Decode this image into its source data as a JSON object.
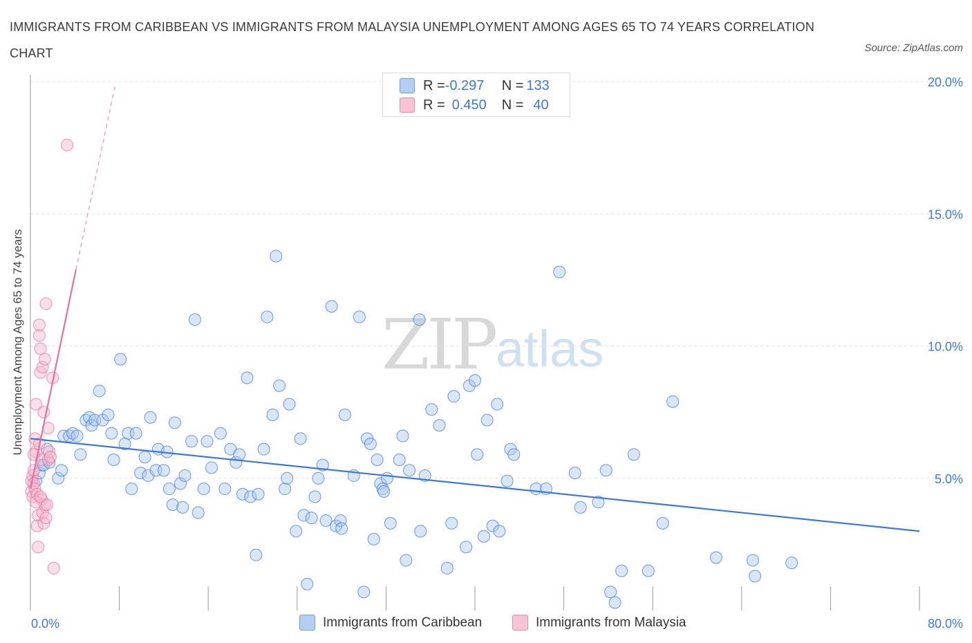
{
  "title": "IMMIGRANTS FROM CARIBBEAN VS IMMIGRANTS FROM MALAYSIA UNEMPLOYMENT AMONG AGES 65 TO 74 YEARS CORRELATION CHART",
  "source": "Source: ZipAtlas.com",
  "watermark": {
    "zip": "ZIP",
    "atlas": "atlas"
  },
  "colors": {
    "blue": "#3c78d8",
    "blue_fill": "#a9c8f0",
    "pink": "#e8709a",
    "pink_fill": "#f5b6cb",
    "grid": "#e2e2e2"
  },
  "legend": {
    "rows": [
      {
        "r_label": "R = ",
        "r_value": "-0.297",
        "n_label": "N = ",
        "n_value": "133"
      },
      {
        "r_label": "R = ",
        "r_value": "0.450",
        "n_label": "N = ",
        "n_value": "40"
      }
    ]
  },
  "bottom_legend": [
    "Immigrants from Caribbean",
    "Immigrants from Malaysia"
  ],
  "chart_data": {
    "type": "scatter",
    "title": "IMMIGRANTS FROM CARIBBEAN VS IMMIGRANTS FROM MALAYSIA UNEMPLOYMENT AMONG AGES 65 TO 74 YEARS CORRELATION CHART",
    "xlabel": "",
    "ylabel": "Unemployment Among Ages 65 to 74 years",
    "xlim": [
      0,
      80
    ],
    "ylim": [
      0,
      20
    ],
    "x_tick_labels": [
      "0.0%",
      "80.0%"
    ],
    "y_ticks": [
      5,
      10,
      15,
      20
    ],
    "y_tick_labels": [
      "5.0%",
      "10.0%",
      "15.0%",
      "20.0%"
    ],
    "series": [
      {
        "name": "Immigrants from Caribbean",
        "R": -0.297,
        "N": 133,
        "trend": {
          "x": [
            0,
            80
          ],
          "y": [
            6.5,
            3.0
          ]
        },
        "points": [
          [
            0.5,
            4.9
          ],
          [
            0.8,
            5.2
          ],
          [
            1.0,
            5.5
          ],
          [
            1.2,
            5.5
          ],
          [
            1.5,
            6.1
          ],
          [
            1.7,
            5.6
          ],
          [
            2.5,
            5.0
          ],
          [
            2.8,
            5.3
          ],
          [
            3.0,
            6.6
          ],
          [
            3.5,
            6.6
          ],
          [
            3.8,
            6.7
          ],
          [
            4.2,
            6.6
          ],
          [
            4.5,
            5.9
          ],
          [
            5.0,
            7.2
          ],
          [
            5.3,
            7.3
          ],
          [
            5.5,
            7.0
          ],
          [
            5.8,
            7.2
          ],
          [
            6.2,
            8.3
          ],
          [
            6.5,
            7.2
          ],
          [
            7.0,
            7.4
          ],
          [
            7.3,
            6.7
          ],
          [
            7.5,
            5.7
          ],
          [
            8.1,
            9.5
          ],
          [
            8.5,
            6.3
          ],
          [
            8.8,
            6.7
          ],
          [
            9.1,
            4.6
          ],
          [
            9.5,
            6.7
          ],
          [
            9.9,
            5.2
          ],
          [
            10.3,
            5.8
          ],
          [
            10.6,
            5.1
          ],
          [
            10.8,
            7.3
          ],
          [
            11.3,
            5.3
          ],
          [
            11.5,
            6.1
          ],
          [
            12.0,
            5.3
          ],
          [
            12.3,
            6.0
          ],
          [
            12.5,
            4.6
          ],
          [
            12.8,
            4.0
          ],
          [
            13.0,
            7.1
          ],
          [
            13.5,
            4.8
          ],
          [
            13.7,
            3.9
          ],
          [
            13.9,
            5.1
          ],
          [
            14.5,
            6.4
          ],
          [
            14.8,
            11.0
          ],
          [
            15.1,
            3.7
          ],
          [
            15.6,
            4.6
          ],
          [
            15.9,
            6.4
          ],
          [
            16.3,
            5.4
          ],
          [
            17.1,
            6.7
          ],
          [
            17.5,
            4.6
          ],
          [
            18.0,
            6.1
          ],
          [
            18.5,
            5.6
          ],
          [
            18.8,
            5.9
          ],
          [
            19.1,
            4.4
          ],
          [
            19.5,
            8.8
          ],
          [
            19.8,
            4.3
          ],
          [
            20.3,
            2.1
          ],
          [
            20.5,
            4.4
          ],
          [
            21.0,
            6.1
          ],
          [
            21.3,
            11.1
          ],
          [
            21.8,
            7.4
          ],
          [
            22.1,
            13.4
          ],
          [
            22.4,
            8.5
          ],
          [
            22.9,
            4.6
          ],
          [
            23.1,
            5.0
          ],
          [
            23.3,
            7.8
          ],
          [
            23.9,
            3.0
          ],
          [
            24.3,
            6.5
          ],
          [
            24.6,
            3.6
          ],
          [
            24.9,
            1.0
          ],
          [
            25.3,
            3.5
          ],
          [
            25.6,
            4.3
          ],
          [
            25.9,
            5.0
          ],
          [
            26.3,
            5.5
          ],
          [
            26.6,
            3.4
          ],
          [
            27.1,
            11.5
          ],
          [
            27.5,
            3.2
          ],
          [
            27.9,
            3.4
          ],
          [
            28.3,
            7.4
          ],
          [
            29.1,
            5.1
          ],
          [
            29.6,
            11.1
          ],
          [
            30.0,
            0.7
          ],
          [
            30.3,
            6.5
          ],
          [
            30.6,
            6.3
          ],
          [
            30.9,
            2.7
          ],
          [
            31.2,
            5.7
          ],
          [
            31.5,
            4.8
          ],
          [
            31.7,
            4.6
          ],
          [
            32.1,
            5.0
          ],
          [
            32.4,
            3.3
          ],
          [
            33.2,
            5.7
          ],
          [
            33.5,
            6.6
          ],
          [
            33.8,
            1.9
          ],
          [
            34.1,
            5.3
          ],
          [
            35.0,
            11.0
          ],
          [
            35.5,
            5.1
          ],
          [
            36.1,
            7.6
          ],
          [
            36.8,
            7.0
          ],
          [
            37.5,
            1.6
          ],
          [
            37.9,
            3.3
          ],
          [
            38.1,
            8.1
          ],
          [
            39.2,
            2.4
          ],
          [
            39.5,
            8.5
          ],
          [
            40.0,
            8.7
          ],
          [
            40.2,
            5.9
          ],
          [
            41.1,
            7.2
          ],
          [
            41.6,
            3.2
          ],
          [
            42.0,
            7.8
          ],
          [
            42.9,
            4.9
          ],
          [
            43.2,
            6.1
          ],
          [
            43.5,
            5.9
          ],
          [
            45.5,
            4.6
          ],
          [
            46.4,
            4.6
          ],
          [
            47.6,
            12.8
          ],
          [
            49.0,
            5.2
          ],
          [
            49.5,
            3.9
          ],
          [
            51.1,
            4.1
          ],
          [
            51.8,
            5.3
          ],
          [
            52.2,
            0.7
          ],
          [
            52.6,
            0.3
          ],
          [
            53.2,
            1.5
          ],
          [
            54.3,
            5.9
          ],
          [
            55.6,
            1.5
          ],
          [
            56.9,
            3.3
          ],
          [
            57.8,
            7.9
          ],
          [
            61.7,
            2.0
          ],
          [
            65.0,
            1.9
          ],
          [
            65.2,
            1.3
          ],
          [
            68.5,
            1.8
          ],
          [
            40.8,
            2.8
          ],
          [
            42.2,
            3.0
          ],
          [
            31.8,
            4.5
          ],
          [
            35.1,
            3.0
          ],
          [
            28.0,
            3.1
          ]
        ]
      },
      {
        "name": "Immigrants from Malaysia",
        "R": 0.45,
        "N": 40,
        "trend": {
          "x": [
            0,
            4.1
          ],
          "y": [
            4.6,
            12.9
          ]
        },
        "trend_extended": {
          "x": [
            4.1,
            7.6
          ],
          "y": [
            12.9,
            19.8
          ]
        },
        "points": [
          [
            0.1,
            4.5
          ],
          [
            0.1,
            4.9
          ],
          [
            0.2,
            5.1
          ],
          [
            0.2,
            4.3
          ],
          [
            0.3,
            5.3
          ],
          [
            0.3,
            4.8
          ],
          [
            0.4,
            4.6
          ],
          [
            0.4,
            6.5
          ],
          [
            0.5,
            7.8
          ],
          [
            0.5,
            6.0
          ],
          [
            0.6,
            4.4
          ],
          [
            0.6,
            3.2
          ],
          [
            0.7,
            3.6
          ],
          [
            0.7,
            2.4
          ],
          [
            0.8,
            10.4
          ],
          [
            0.8,
            10.8
          ],
          [
            0.9,
            9.9
          ],
          [
            0.9,
            9.0
          ],
          [
            1.0,
            4.2
          ],
          [
            1.0,
            5.7
          ],
          [
            1.1,
            9.2
          ],
          [
            1.1,
            3.7
          ],
          [
            1.2,
            7.5
          ],
          [
            1.2,
            3.3
          ],
          [
            1.3,
            4.0
          ],
          [
            1.3,
            9.5
          ],
          [
            1.4,
            11.6
          ],
          [
            1.4,
            3.5
          ],
          [
            1.5,
            4.0
          ],
          [
            1.6,
            5.7
          ],
          [
            1.6,
            6.9
          ],
          [
            1.7,
            6.0
          ],
          [
            1.8,
            5.8
          ],
          [
            2.0,
            8.8
          ],
          [
            2.1,
            1.6
          ],
          [
            0.3,
            5.9
          ],
          [
            0.5,
            4.1
          ],
          [
            0.9,
            4.3
          ],
          [
            3.3,
            17.6
          ],
          [
            0.8,
            6.3
          ]
        ]
      }
    ]
  }
}
